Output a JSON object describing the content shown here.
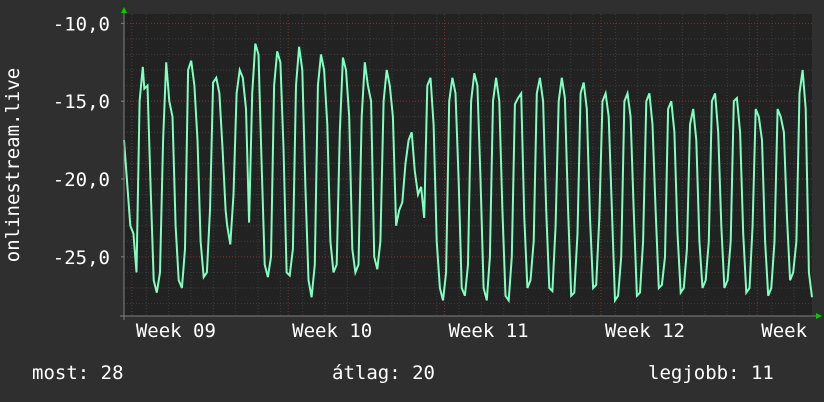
{
  "colors": {
    "background": "#2f2f2f",
    "plot_background": "#222222",
    "grid_minor": "#3c3c3c",
    "grid_major": "#7a3030",
    "line": "#7fffc0",
    "axis_arrow": "#00cc00",
    "text": "#ffffff"
  },
  "chart_data": {
    "type": "line",
    "title": "",
    "xlabel": "",
    "ylabel": "onlinestream.live",
    "yticks": [
      -10,
      -15,
      -20,
      -25
    ],
    "ytick_labels": [
      "-10,0",
      "-15,0",
      "-20,0",
      "-25,0"
    ],
    "ylim": [
      -28.8,
      -9.4
    ],
    "xlim": [
      0,
      4.4
    ],
    "xticks": [
      0.05,
      1.05,
      2.05,
      3.05,
      4.05
    ],
    "xtick_labels": [
      "Week 09",
      "Week 10",
      "Week 11",
      "Week 12",
      "Week"
    ],
    "grid": true,
    "series": [
      {
        "values": [
          [
            0.0,
            -17.5
          ],
          [
            0.04,
            -23.0
          ],
          [
            0.06,
            -23.5
          ],
          [
            0.08,
            -26.0
          ],
          [
            0.1,
            -15.0
          ],
          [
            0.12,
            -12.8
          ],
          [
            0.13,
            -14.2
          ],
          [
            0.15,
            -14.0
          ],
          [
            0.17,
            -20.5
          ],
          [
            0.19,
            -26.5
          ],
          [
            0.21,
            -27.3
          ],
          [
            0.23,
            -26.0
          ],
          [
            0.25,
            -17.5
          ],
          [
            0.27,
            -12.5
          ],
          [
            0.29,
            -15.0
          ],
          [
            0.31,
            -16.0
          ],
          [
            0.33,
            -23.0
          ],
          [
            0.35,
            -26.5
          ],
          [
            0.37,
            -27.0
          ],
          [
            0.39,
            -24.5
          ],
          [
            0.41,
            -13.0
          ],
          [
            0.43,
            -12.4
          ],
          [
            0.45,
            -14.0
          ],
          [
            0.47,
            -17.5
          ],
          [
            0.49,
            -24.0
          ],
          [
            0.51,
            -26.3
          ],
          [
            0.53,
            -26.0
          ],
          [
            0.55,
            -22.0
          ],
          [
            0.57,
            -13.8
          ],
          [
            0.59,
            -13.5
          ],
          [
            0.61,
            -14.5
          ],
          [
            0.63,
            -18.0
          ],
          [
            0.65,
            -22.0
          ],
          [
            0.66,
            -23.0
          ],
          [
            0.68,
            -24.2
          ],
          [
            0.7,
            -21.0
          ],
          [
            0.72,
            -14.5
          ],
          [
            0.74,
            -13.0
          ],
          [
            0.76,
            -13.5
          ],
          [
            0.78,
            -15.5
          ],
          [
            0.8,
            -22.8
          ],
          [
            0.82,
            -14.5
          ],
          [
            0.84,
            -11.3
          ],
          [
            0.86,
            -12.0
          ],
          [
            0.88,
            -19.0
          ],
          [
            0.9,
            -25.5
          ],
          [
            0.92,
            -26.3
          ],
          [
            0.94,
            -25.0
          ],
          [
            0.96,
            -14.0
          ],
          [
            0.98,
            -11.8
          ],
          [
            1.0,
            -12.5
          ],
          [
            1.02,
            -18.0
          ],
          [
            1.04,
            -26.0
          ],
          [
            1.06,
            -26.2
          ],
          [
            1.08,
            -24.5
          ],
          [
            1.1,
            -14.0
          ],
          [
            1.12,
            -11.5
          ],
          [
            1.14,
            -13.0
          ],
          [
            1.16,
            -20.5
          ],
          [
            1.18,
            -26.5
          ],
          [
            1.2,
            -27.6
          ],
          [
            1.22,
            -25.5
          ],
          [
            1.24,
            -14.0
          ],
          [
            1.26,
            -12.0
          ],
          [
            1.28,
            -13.0
          ],
          [
            1.3,
            -16.5
          ],
          [
            1.32,
            -24.0
          ],
          [
            1.34,
            -26.0
          ],
          [
            1.36,
            -25.5
          ],
          [
            1.38,
            -17.0
          ],
          [
            1.4,
            -12.2
          ],
          [
            1.42,
            -13.0
          ],
          [
            1.44,
            -16.0
          ],
          [
            1.46,
            -24.5
          ],
          [
            1.48,
            -26.0
          ],
          [
            1.5,
            -25.5
          ],
          [
            1.52,
            -16.0
          ],
          [
            1.54,
            -12.5
          ],
          [
            1.56,
            -14.0
          ],
          [
            1.58,
            -15.0
          ],
          [
            1.6,
            -25.0
          ],
          [
            1.62,
            -25.8
          ],
          [
            1.64,
            -24.0
          ],
          [
            1.66,
            -15.0
          ],
          [
            1.68,
            -13.0
          ],
          [
            1.7,
            -14.0
          ],
          [
            1.72,
            -16.0
          ],
          [
            1.74,
            -23.0
          ],
          [
            1.76,
            -22.0
          ],
          [
            1.78,
            -21.5
          ],
          [
            1.8,
            -19.0
          ],
          [
            1.82,
            -17.5
          ],
          [
            1.84,
            -17.0
          ],
          [
            1.86,
            -19.5
          ],
          [
            1.88,
            -21.0
          ],
          [
            1.9,
            -20.5
          ],
          [
            1.92,
            -22.5
          ],
          [
            1.94,
            -14.0
          ],
          [
            1.96,
            -13.5
          ],
          [
            1.98,
            -16.5
          ],
          [
            2.0,
            -24.0
          ],
          [
            2.02,
            -27.0
          ],
          [
            2.04,
            -27.8
          ],
          [
            2.06,
            -26.0
          ],
          [
            2.08,
            -15.0
          ],
          [
            2.1,
            -13.5
          ],
          [
            2.12,
            -14.5
          ],
          [
            2.14,
            -20.0
          ],
          [
            2.16,
            -27.0
          ],
          [
            2.18,
            -27.5
          ],
          [
            2.2,
            -25.5
          ],
          [
            2.22,
            -15.0
          ],
          [
            2.24,
            -13.2
          ],
          [
            2.26,
            -14.0
          ],
          [
            2.28,
            -20.0
          ],
          [
            2.3,
            -27.0
          ],
          [
            2.32,
            -27.8
          ],
          [
            2.34,
            -25.0
          ],
          [
            2.36,
            -15.0
          ],
          [
            2.38,
            -13.5
          ],
          [
            2.4,
            -15.0
          ],
          [
            2.42,
            -22.0
          ],
          [
            2.44,
            -27.5
          ],
          [
            2.46,
            -27.8
          ],
          [
            2.48,
            -25.0
          ],
          [
            2.5,
            -15.2
          ],
          [
            2.52,
            -14.8
          ],
          [
            2.54,
            -14.5
          ],
          [
            2.56,
            -22.5
          ],
          [
            2.58,
            -27.0
          ],
          [
            2.6,
            -26.5
          ],
          [
            2.62,
            -24.0
          ],
          [
            2.64,
            -14.5
          ],
          [
            2.66,
            -13.5
          ],
          [
            2.68,
            -15.0
          ],
          [
            2.7,
            -22.0
          ],
          [
            2.72,
            -27.0
          ],
          [
            2.74,
            -27.2
          ],
          [
            2.76,
            -23.0
          ],
          [
            2.78,
            -15.0
          ],
          [
            2.8,
            -13.5
          ],
          [
            2.82,
            -14.8
          ],
          [
            2.84,
            -22.0
          ],
          [
            2.86,
            -27.5
          ],
          [
            2.88,
            -27.3
          ],
          [
            2.9,
            -23.5
          ],
          [
            2.92,
            -14.5
          ],
          [
            2.94,
            -13.8
          ],
          [
            2.96,
            -15.5
          ],
          [
            2.98,
            -22.5
          ],
          [
            3.0,
            -27.0
          ],
          [
            3.02,
            -26.8
          ],
          [
            3.04,
            -22.5
          ],
          [
            3.06,
            -15.0
          ],
          [
            3.08,
            -14.5
          ],
          [
            3.1,
            -16.0
          ],
          [
            3.12,
            -22.0
          ],
          [
            3.14,
            -27.8
          ],
          [
            3.16,
            -27.5
          ],
          [
            3.18,
            -25.0
          ],
          [
            3.2,
            -15.0
          ],
          [
            3.22,
            -14.5
          ],
          [
            3.24,
            -16.0
          ],
          [
            3.26,
            -22.0
          ],
          [
            3.28,
            -27.5
          ],
          [
            3.3,
            -27.3
          ],
          [
            3.32,
            -24.0
          ],
          [
            3.34,
            -15.0
          ],
          [
            3.36,
            -14.5
          ],
          [
            3.38,
            -16.5
          ],
          [
            3.4,
            -22.0
          ],
          [
            3.42,
            -27.0
          ],
          [
            3.44,
            -26.8
          ],
          [
            3.46,
            -25.0
          ],
          [
            3.48,
            -15.5
          ],
          [
            3.5,
            -15.0
          ],
          [
            3.52,
            -17.0
          ],
          [
            3.54,
            -23.5
          ],
          [
            3.56,
            -27.3
          ],
          [
            3.58,
            -27.0
          ],
          [
            3.6,
            -24.5
          ],
          [
            3.62,
            -16.5
          ],
          [
            3.64,
            -15.5
          ],
          [
            3.66,
            -17.5
          ],
          [
            3.68,
            -24.0
          ],
          [
            3.7,
            -27.0
          ],
          [
            3.72,
            -26.5
          ],
          [
            3.74,
            -24.0
          ],
          [
            3.76,
            -15.0
          ],
          [
            3.78,
            -14.5
          ],
          [
            3.8,
            -17.0
          ],
          [
            3.82,
            -23.0
          ],
          [
            3.84,
            -27.0
          ],
          [
            3.86,
            -26.5
          ],
          [
            3.88,
            -24.0
          ],
          [
            3.9,
            -15.0
          ],
          [
            3.92,
            -14.8
          ],
          [
            3.94,
            -17.0
          ],
          [
            3.96,
            -23.5
          ],
          [
            3.98,
            -27.3
          ],
          [
            4.0,
            -27.0
          ],
          [
            4.02,
            -23.0
          ],
          [
            4.04,
            -15.5
          ],
          [
            4.06,
            -16.0
          ],
          [
            4.08,
            -17.5
          ],
          [
            4.1,
            -24.0
          ],
          [
            4.12,
            -27.5
          ],
          [
            4.14,
            -27.0
          ],
          [
            4.16,
            -24.0
          ],
          [
            4.18,
            -15.5
          ],
          [
            4.2,
            -16.0
          ],
          [
            4.22,
            -17.0
          ],
          [
            4.24,
            -22.5
          ],
          [
            4.26,
            -26.5
          ],
          [
            4.28,
            -26.0
          ],
          [
            4.3,
            -24.0
          ],
          [
            4.32,
            -14.5
          ],
          [
            4.34,
            -13.0
          ],
          [
            4.36,
            -15.5
          ],
          [
            4.38,
            -26.0
          ],
          [
            4.4,
            -27.6
          ]
        ]
      }
    ]
  },
  "footer": {
    "current": "most: 28",
    "average": "átlag: 20",
    "best": "legjobb: 11"
  }
}
